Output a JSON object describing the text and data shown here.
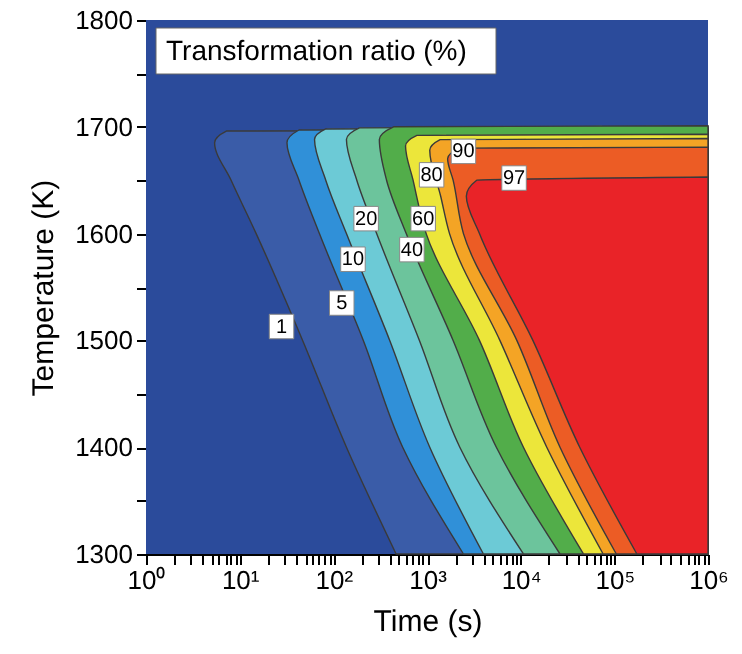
{
  "chart_data": {
    "type": "area",
    "title": "Transformation ratio (%)",
    "xlabel": "Time (s)",
    "ylabel": "Temperature (K)",
    "log": "x",
    "grid": false,
    "xlim": [
      1,
      1000000
    ],
    "ylim": [
      1300,
      1800
    ],
    "xticks": [
      {
        "value": 1,
        "label": "10⁰"
      },
      {
        "value": 2,
        "label": null
      },
      {
        "value": 3,
        "label": null
      },
      {
        "value": 4,
        "label": null
      },
      {
        "value": 5,
        "label": null
      },
      {
        "value": 6,
        "label": null
      },
      {
        "value": 7,
        "label": null
      },
      {
        "value": 8,
        "label": null
      },
      {
        "value": 9,
        "label": null
      },
      {
        "value": 10,
        "label": "10¹"
      },
      {
        "value": 20,
        "label": null
      },
      {
        "value": 30,
        "label": null
      },
      {
        "value": 40,
        "label": null
      },
      {
        "value": 50,
        "label": null
      },
      {
        "value": 60,
        "label": null
      },
      {
        "value": 70,
        "label": null
      },
      {
        "value": 80,
        "label": null
      },
      {
        "value": 90,
        "label": null
      },
      {
        "value": 100,
        "label": "10²"
      },
      {
        "value": 200,
        "label": null
      },
      {
        "value": 300,
        "label": null
      },
      {
        "value": 400,
        "label": null
      },
      {
        "value": 500,
        "label": null
      },
      {
        "value": 600,
        "label": null
      },
      {
        "value": 700,
        "label": null
      },
      {
        "value": 800,
        "label": null
      },
      {
        "value": 900,
        "label": null
      },
      {
        "value": 1000,
        "label": "10³"
      },
      {
        "value": 2000,
        "label": null
      },
      {
        "value": 3000,
        "label": null
      },
      {
        "value": 4000,
        "label": null
      },
      {
        "value": 5000,
        "label": null
      },
      {
        "value": 6000,
        "label": null
      },
      {
        "value": 7000,
        "label": null
      },
      {
        "value": 8000,
        "label": null
      },
      {
        "value": 9000,
        "label": null
      },
      {
        "value": 10000,
        "label": "10⁴"
      },
      {
        "value": 20000,
        "label": null
      },
      {
        "value": 30000,
        "label": null
      },
      {
        "value": 40000,
        "label": null
      },
      {
        "value": 50000,
        "label": null
      },
      {
        "value": 60000,
        "label": null
      },
      {
        "value": 70000,
        "label": null
      },
      {
        "value": 80000,
        "label": null
      },
      {
        "value": 90000,
        "label": null
      },
      {
        "value": 100000,
        "label": "10⁵"
      },
      {
        "value": 200000,
        "label": null
      },
      {
        "value": 300000,
        "label": null
      },
      {
        "value": 400000,
        "label": null
      },
      {
        "value": 500000,
        "label": null
      },
      {
        "value": 600000,
        "label": null
      },
      {
        "value": 700000,
        "label": null
      },
      {
        "value": 800000,
        "label": null
      },
      {
        "value": 900000,
        "label": null
      },
      {
        "value": 1000000,
        "label": "10⁶"
      }
    ],
    "yticks": [
      1300,
      {
        "value": 1350,
        "label": null
      },
      1400,
      {
        "value": 1450,
        "label": null
      },
      1500,
      {
        "value": 1550,
        "label": null
      },
      1600,
      {
        "value": 1650,
        "label": null
      },
      1700,
      {
        "value": 1750,
        "label": null
      },
      1800
    ],
    "bands": [
      {
        "axis": "x",
        "from": 1,
        "to": 1000000,
        "color": "#2b4b9b"
      }
    ],
    "series": [
      {
        "type": "area",
        "color": "#3a5ca8",
        "x": [
          468,
          138,
          47,
          15,
          8.1,
          5.4,
          7.2,
          1000000
        ],
        "values": [
          1300,
          1400,
          1500,
          1600,
          1650,
          1685,
          1696,
          1697
        ]
      },
      {
        "type": "area",
        "color": "#3090d8",
        "x": [
          2450,
          550,
          209,
          71,
          43,
          32,
          43,
          1000000
        ],
        "values": [
          1300,
          1400,
          1500,
          1600,
          1650,
          1685,
          1697,
          1698
        ]
      },
      {
        "type": "area",
        "color": "#6ccad6",
        "x": [
          4000,
          1070,
          400,
          138,
          83,
          63,
          83,
          1000000
        ],
        "values": [
          1300,
          1400,
          1500,
          1600,
          1650,
          1688,
          1698,
          1699
        ]
      },
      {
        "type": "area",
        "color": "#6cc49c",
        "x": [
          10700,
          2240,
          830,
          290,
          178,
          138,
          190,
          1000000
        ],
        "values": [
          1300,
          1400,
          1500,
          1600,
          1650,
          1688,
          1699,
          1700
        ]
      },
      {
        "type": "area",
        "color": "#52ad4a",
        "x": [
          26300,
          5500,
          1900,
          600,
          370,
          310,
          440,
          1000000
        ],
        "values": [
          1300,
          1400,
          1500,
          1600,
          1650,
          1688,
          1700,
          1701
        ]
      },
      {
        "type": "area",
        "color": "#ece63a",
        "x": [
          46800,
          10700,
          3630,
          980,
          710,
          590,
          780,
          1000000
        ],
        "values": [
          1300,
          1400,
          1500,
          1600,
          1650,
          1682,
          1692,
          1693
        ]
      },
      {
        "type": "area",
        "color": "#f4a425",
        "x": [
          75900,
          19000,
          6000,
          1740,
          1400,
          1070,
          1380,
          1000000
        ],
        "values": [
          1300,
          1400,
          1500,
          1600,
          1635,
          1678,
          1688,
          1689
        ]
      },
      {
        "type": "area",
        "color": "#ec5c25",
        "x": [
          105000,
          26300,
          9100,
          2450,
          1900,
          1660,
          2240,
          1000000
        ],
        "values": [
          1300,
          1400,
          1500,
          1600,
          1650,
          1670,
          1680,
          1681
        ]
      },
      {
        "type": "area",
        "color": "#e92328",
        "x": [
          174000,
          42700,
          13500,
          3630,
          2630,
          3390,
          1000000
        ],
        "values": [
          1300,
          1400,
          1500,
          1600,
          1635,
          1650,
          1653
        ]
      }
    ],
    "annotations": [
      {
        "text": "1",
        "x": 28,
        "y": 1513
      },
      {
        "text": "5",
        "x": 123,
        "y": 1535
      },
      {
        "text": "10",
        "x": 162,
        "y": 1576
      },
      {
        "text": "20",
        "x": 224,
        "y": 1614
      },
      {
        "text": "40",
        "x": 690,
        "y": 1585
      },
      {
        "text": "60",
        "x": 910,
        "y": 1614
      },
      {
        "text": "80",
        "x": 1120,
        "y": 1655
      },
      {
        "text": "90",
        "x": 2450,
        "y": 1677
      },
      {
        "text": "97",
        "x": 8500,
        "y": 1652
      }
    ]
  }
}
